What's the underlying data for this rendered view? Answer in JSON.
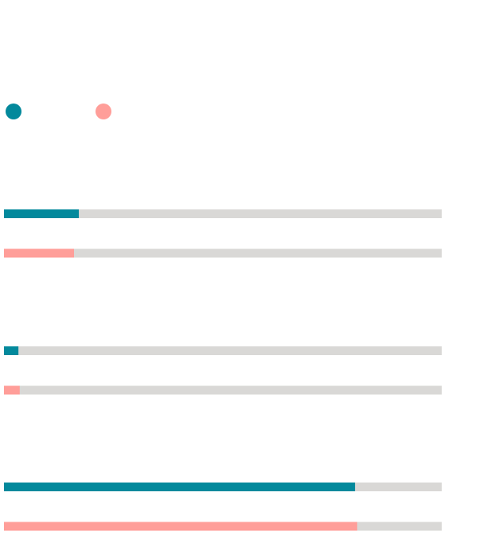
{
  "chart_data": {
    "type": "bar",
    "orientation": "horizontal",
    "grouped": true,
    "value_scale": "fraction_of_track",
    "xlim": [
      0,
      1
    ],
    "legend_placement": "top-left",
    "grid": false,
    "categories": [
      "",
      "",
      ""
    ],
    "series": [
      {
        "color": "#03899c",
        "values": [
          0.171,
          0.033,
          0.802
        ]
      },
      {
        "color": "#ff9e99",
        "values": [
          0.16,
          0.036,
          0.807
        ]
      }
    ],
    "track_color": "#d9d8d6"
  }
}
